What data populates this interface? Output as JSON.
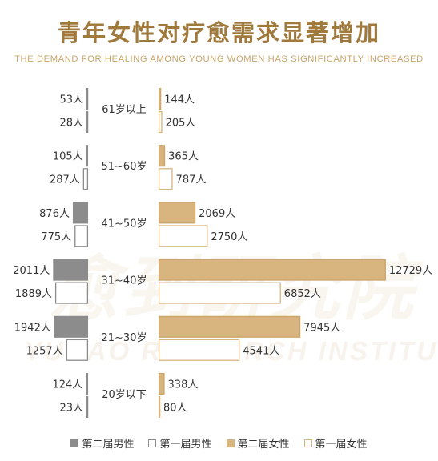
{
  "title": "青年女性对疗愈需求显著增加",
  "subtitle": "THE DEMAND FOR HEALING AMONG YOUNG WOMEN HAS SIGNIFICANTLY INCREASED",
  "watermark": {
    "cn": "愈到研究院",
    "en": "YUDAO RESEARCH INSTITUTE"
  },
  "colors": {
    "male_second": "#8c8c8c",
    "male_first_border": "#8c8c8c",
    "female_second": "#d8b47e",
    "female_first_border": "#d8b47e",
    "female_second_border": "#c9a46b",
    "title": "#a07a3c"
  },
  "legend": [
    {
      "label": "第二届男性",
      "style": "male-second"
    },
    {
      "label": "第一届男性",
      "style": "male-first"
    },
    {
      "label": "第二届女性",
      "style": "female-second"
    },
    {
      "label": "第一届女性",
      "style": "female-first"
    }
  ],
  "chart_data": {
    "type": "bar",
    "orientation": "horizontal-butterfly",
    "unit": "人",
    "categories": [
      "61岁以上",
      "51~60岁",
      "41~50岁",
      "31~40岁",
      "21~30岁",
      "20岁以下"
    ],
    "series": [
      {
        "name": "第二届男性",
        "side": "left",
        "values": [
          53,
          105,
          876,
          2011,
          1942,
          124
        ]
      },
      {
        "name": "第一届男性",
        "side": "left",
        "values": [
          28,
          287,
          775,
          1889,
          1257,
          23
        ]
      },
      {
        "name": "第二届女性",
        "side": "right",
        "values": [
          144,
          365,
          2069,
          12729,
          7945,
          338
        ]
      },
      {
        "name": "第一届女性",
        "side": "right",
        "values": [
          205,
          787,
          2750,
          6852,
          4541,
          80
        ]
      }
    ]
  }
}
